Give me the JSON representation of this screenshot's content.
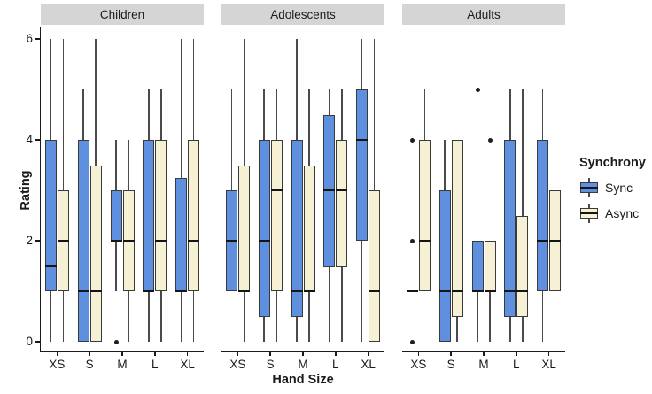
{
  "chart_data": {
    "type": "boxplot",
    "title": "",
    "xlabel": "Hand Size",
    "ylabel": "Rating",
    "ylim": [
      0,
      6
    ],
    "yticks": [
      0,
      2,
      4,
      6
    ],
    "grid": false,
    "categories": [
      "XS",
      "S",
      "M",
      "L",
      "XL"
    ],
    "legend": {
      "title": "Synchrony",
      "position": "right",
      "items": [
        {
          "name": "Sync",
          "color": "#5f8fdf"
        },
        {
          "name": "Async",
          "color": "#f6f1d5"
        }
      ]
    },
    "facets": [
      {
        "label": "Children",
        "boxes": [
          {
            "category": "XS",
            "sync": {
              "lo": 0,
              "q1": 1,
              "med": 1.5,
              "q3": 4,
              "hi": 6,
              "out": []
            },
            "async": {
              "lo": 0,
              "q1": 1,
              "med": 2,
              "q3": 3,
              "hi": 6,
              "out": []
            }
          },
          {
            "category": "S",
            "sync": {
              "lo": 0,
              "q1": 0,
              "med": 1,
              "q3": 4,
              "hi": 5,
              "out": []
            },
            "async": {
              "lo": 0,
              "q1": 0,
              "med": 1,
              "q3": 3.5,
              "hi": 6,
              "out": []
            }
          },
          {
            "category": "M",
            "sync": {
              "lo": 1,
              "q1": 2,
              "med": 2,
              "q3": 3,
              "hi": 4,
              "out": [
                0
              ]
            },
            "async": {
              "lo": 0,
              "q1": 1,
              "med": 2,
              "q3": 3,
              "hi": 4,
              "out": []
            }
          },
          {
            "category": "L",
            "sync": {
              "lo": 0,
              "q1": 1,
              "med": 1,
              "q3": 4,
              "hi": 5,
              "out": []
            },
            "async": {
              "lo": 0,
              "q1": 1,
              "med": 2,
              "q3": 4,
              "hi": 5,
              "out": []
            }
          },
          {
            "category": "XL",
            "sync": {
              "lo": 0,
              "q1": 1,
              "med": 1,
              "q3": 3.25,
              "hi": 6,
              "out": []
            },
            "async": {
              "lo": 0,
              "q1": 1,
              "med": 2,
              "q3": 4,
              "hi": 6,
              "out": []
            }
          }
        ]
      },
      {
        "label": "Adolescents",
        "boxes": [
          {
            "category": "XS",
            "sync": {
              "lo": 1,
              "q1": 1,
              "med": 2,
              "q3": 3,
              "hi": 5,
              "out": []
            },
            "async": {
              "lo": 0,
              "q1": 1,
              "med": 1,
              "q3": 3.5,
              "hi": 6,
              "out": []
            }
          },
          {
            "category": "S",
            "sync": {
              "lo": 0,
              "q1": 0.5,
              "med": 2,
              "q3": 4,
              "hi": 5,
              "out": []
            },
            "async": {
              "lo": 0,
              "q1": 1,
              "med": 3,
              "q3": 4,
              "hi": 5,
              "out": []
            }
          },
          {
            "category": "M",
            "sync": {
              "lo": 0,
              "q1": 0.5,
              "med": 1,
              "q3": 4,
              "hi": 6,
              "out": []
            },
            "async": {
              "lo": 0,
              "q1": 1,
              "med": 1,
              "q3": 3.5,
              "hi": 5,
              "out": []
            }
          },
          {
            "category": "L",
            "sync": {
              "lo": 0,
              "q1": 1.5,
              "med": 3,
              "q3": 4.5,
              "hi": 5,
              "out": []
            },
            "async": {
              "lo": 0,
              "q1": 1.5,
              "med": 3,
              "q3": 4,
              "hi": 5,
              "out": []
            }
          },
          {
            "category": "XL",
            "sync": {
              "lo": 0,
              "q1": 2,
              "med": 4,
              "q3": 5,
              "hi": 6,
              "out": []
            },
            "async": {
              "lo": 0,
              "q1": 0,
              "med": 1,
              "q3": 3,
              "hi": 6,
              "out": []
            }
          }
        ]
      },
      {
        "label": "Adults",
        "boxes": [
          {
            "category": "XS",
            "sync": {
              "lo": 1,
              "q1": 1,
              "med": 1,
              "q3": 1,
              "hi": 1,
              "out": [
                0,
                2,
                4
              ]
            },
            "async": {
              "lo": 1,
              "q1": 1,
              "med": 2,
              "q3": 4,
              "hi": 5,
              "out": []
            }
          },
          {
            "category": "S",
            "sync": {
              "lo": 0,
              "q1": 0,
              "med": 1,
              "q3": 3,
              "hi": 4,
              "out": []
            },
            "async": {
              "lo": 0,
              "q1": 0.5,
              "med": 1,
              "q3": 4,
              "hi": 4,
              "out": []
            }
          },
          {
            "category": "M",
            "sync": {
              "lo": 0,
              "q1": 1,
              "med": 1,
              "q3": 2,
              "hi": 2,
              "out": [
                5
              ]
            },
            "async": {
              "lo": 0,
              "q1": 1,
              "med": 1,
              "q3": 2,
              "hi": 2,
              "out": [
                4
              ]
            }
          },
          {
            "category": "L",
            "sync": {
              "lo": 0,
              "q1": 0.5,
              "med": 1,
              "q3": 4,
              "hi": 5,
              "out": []
            },
            "async": {
              "lo": 0,
              "q1": 0.5,
              "med": 1,
              "q3": 2.5,
              "hi": 5,
              "out": []
            }
          },
          {
            "category": "XL",
            "sync": {
              "lo": 0,
              "q1": 1,
              "med": 2,
              "q3": 4,
              "hi": 5,
              "out": []
            },
            "async": {
              "lo": 0,
              "q1": 1,
              "med": 2,
              "q3": 3,
              "hi": 4,
              "out": []
            }
          }
        ]
      }
    ],
    "colors": {
      "sync_fill": "#5f8fdf",
      "async_fill": "#f6f1d5",
      "box_border": "#3a3a3a",
      "whisker": "#4a4a4a",
      "median": "#151515",
      "outlier": "#1f1f1f",
      "strip_bg": "#d5d5d5",
      "axis": "#1a1a1a"
    }
  }
}
